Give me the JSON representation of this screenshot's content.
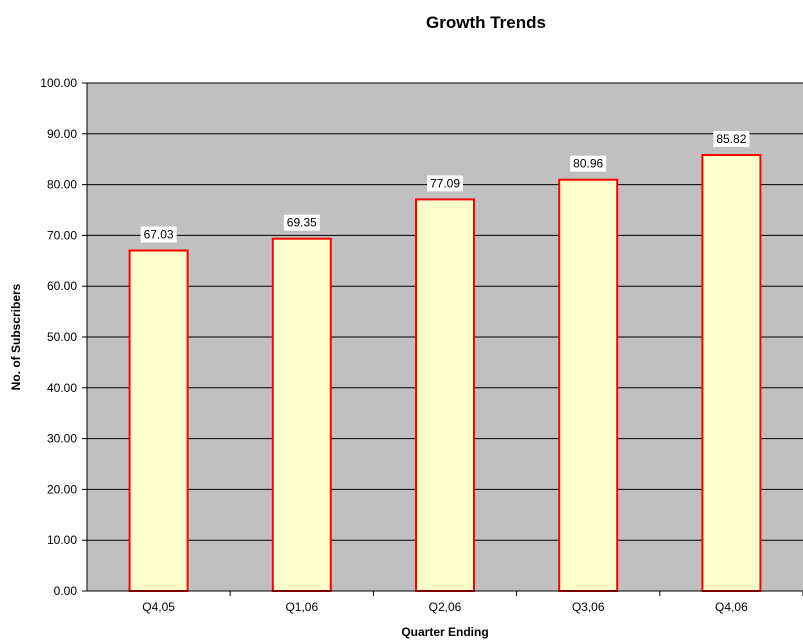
{
  "chart_data": {
    "type": "bar",
    "title": "Growth Trends",
    "xlabel": "Quarter Ending",
    "ylabel": "No. of Subscribers",
    "categories": [
      "Q4,05",
      "Q1,06",
      "Q2,06",
      "Q3,06",
      "Q4,06"
    ],
    "values": [
      67.03,
      69.35,
      77.09,
      80.96,
      85.82
    ],
    "data_labels": [
      "67.03",
      "69.35",
      "77.09",
      "80.96",
      "85.82"
    ],
    "ylim": [
      0,
      100
    ],
    "yticks": [
      "0.00",
      "10.00",
      "20.00",
      "30.00",
      "40.00",
      "50.00",
      "60.00",
      "70.00",
      "80.00",
      "90.00",
      "100.00"
    ],
    "grid": true,
    "legend": "none",
    "colors": {
      "plot_background": "#c0c0c0",
      "bar_fill": "#ffffcc",
      "bar_stroke": "#ff0000",
      "gridline": "#000000",
      "label_background": "#ffffff"
    }
  }
}
